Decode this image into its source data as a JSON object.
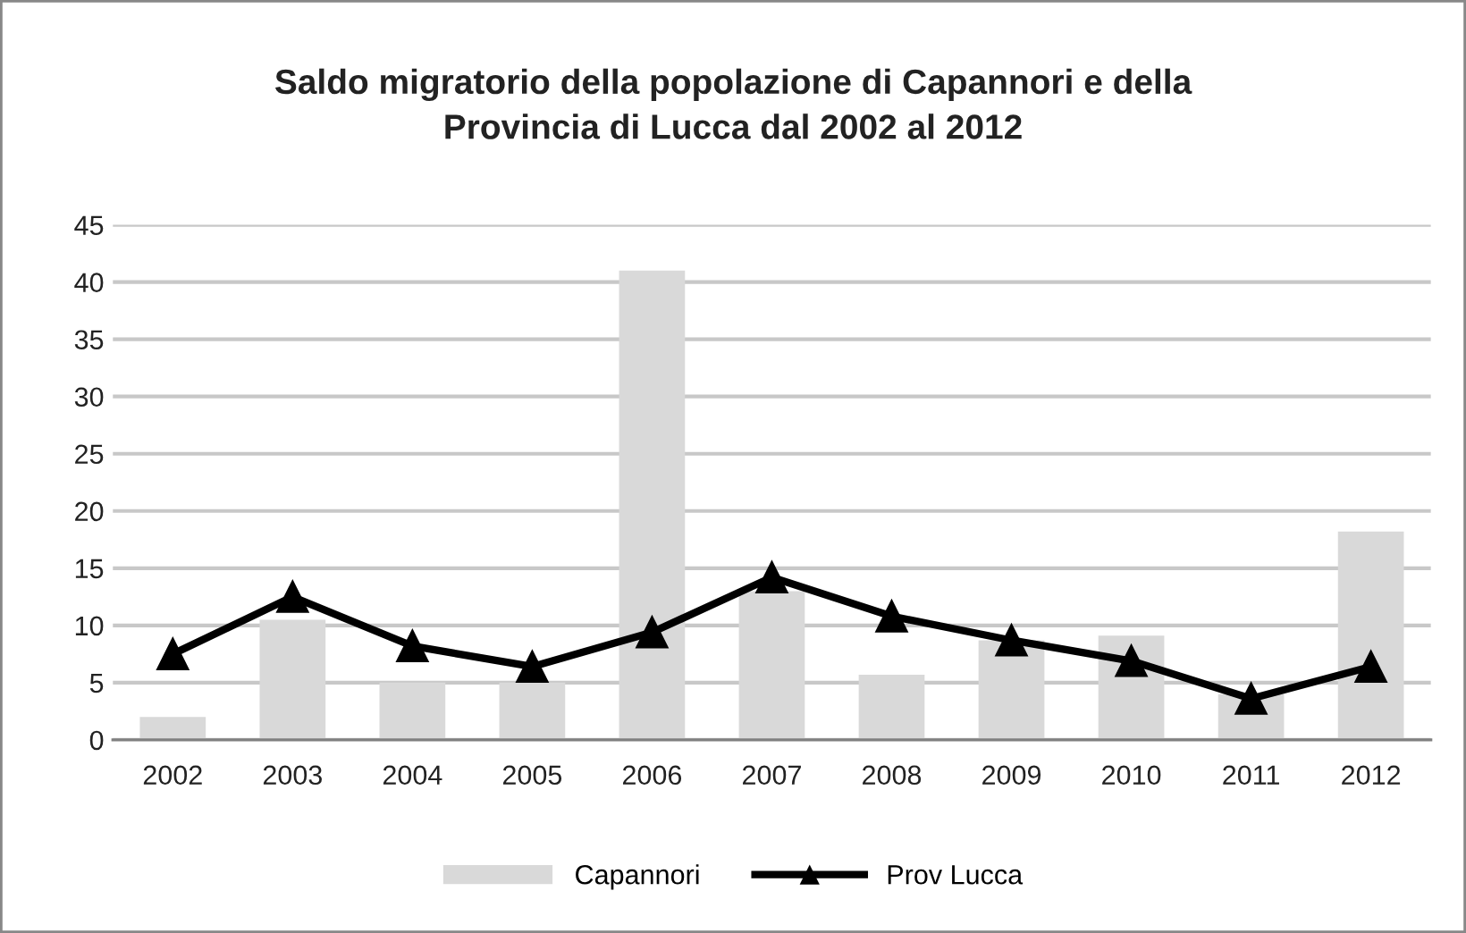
{
  "chart_data": {
    "type": "bar",
    "title": "Saldo migratorio della popolazione di Capannori e della\nProvincia di Lucca dal 2002 al 2012",
    "categories": [
      "2002",
      "2003",
      "2004",
      "2005",
      "2006",
      "2007",
      "2008",
      "2009",
      "2010",
      "2011",
      "2012"
    ],
    "series": [
      {
        "name": "Capannori",
        "color": "#d9d9d9",
        "values": [
          2,
          10.5,
          5,
          5,
          41,
          13,
          5.7,
          8.7,
          9.1,
          4,
          18.2
        ]
      },
      {
        "name": "Prov Lucca",
        "type": "line",
        "color": "#000000",
        "marker": "triangle",
        "line_style": "solid",
        "values": [
          7.5,
          12.5,
          8.2,
          6.4,
          9.4,
          14.2,
          10.8,
          8.7,
          6.9,
          3.6,
          6.4
        ]
      }
    ],
    "ylim": [
      0,
      45
    ],
    "yticks": [
      0,
      5,
      10,
      15,
      20,
      25,
      30,
      35,
      40,
      45
    ],
    "grid": "y",
    "legend": "bottom"
  }
}
